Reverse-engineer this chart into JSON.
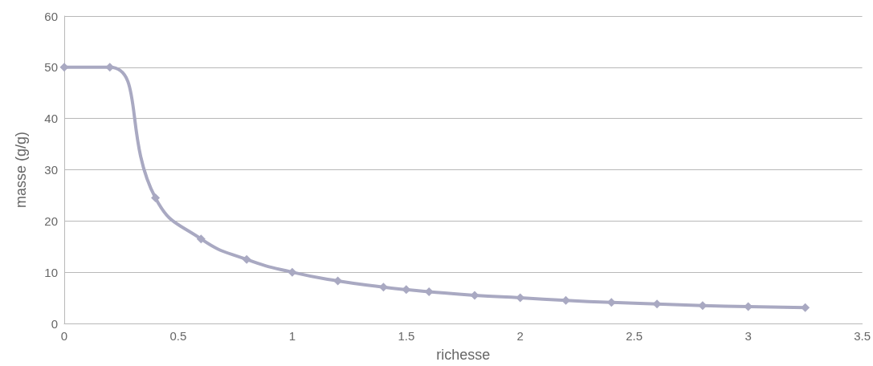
{
  "chart_data": {
    "type": "line",
    "xlabel": "richesse",
    "ylabel": "masse (g/g)",
    "x": [
      0,
      0.2,
      0.4,
      0.6,
      0.8,
      1,
      1.2,
      1.4,
      1.5,
      1.6,
      1.8,
      2,
      2.2,
      2.4,
      2.6,
      2.8,
      3,
      3.25
    ],
    "series": [
      {
        "color": "#a9a9c2",
        "values": [
          50,
          50,
          24.5,
          16.5,
          12.5,
          10,
          8.3,
          7.1,
          6.6,
          6.2,
          5.5,
          5,
          4.5,
          4.1,
          3.8,
          3.5,
          3.3,
          3.1
        ]
      }
    ],
    "xlim": [
      0,
      3.5
    ],
    "xticks": [
      0,
      0.5,
      1,
      1.5,
      2,
      2.5,
      3,
      3.5
    ],
    "ylim": [
      0,
      60
    ],
    "yticks": [
      0,
      10,
      20,
      30,
      40,
      50,
      60
    ],
    "grid": "y",
    "marker": "diamond",
    "line_style": "solid"
  }
}
